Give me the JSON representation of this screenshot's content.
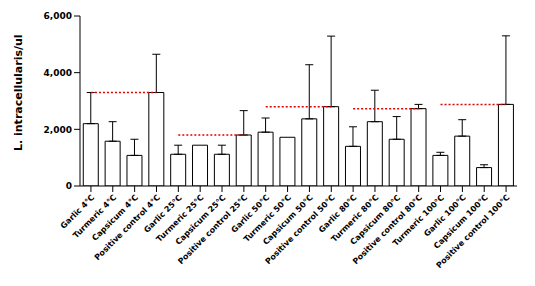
{
  "chart_data": {
    "type": "bar",
    "y_label": "L. intracellularis/ul",
    "categories": [
      "Garlic 4℃",
      "Turmeric 4℃",
      "Capsicum 4℃",
      "Positive control 4℃",
      "Garlic 25℃",
      "Turmeric 25℃",
      "Capsicum 25℃",
      "Positive control 25℃",
      "Garlic 50℃",
      "Turmeric 50℃",
      "Capsicum 50℃",
      "Positive control 50℃",
      "Garlic 80℃",
      "Turmeric 80℃",
      "Capsicum 80℃",
      "Positive control 80℃",
      "Turmeric 100℃",
      "Garlic 100℃",
      "Capsicum 100℃",
      "Positive control 100℃"
    ],
    "values": [
      2200,
      1580,
      1080,
      3300,
      1120,
      1440,
      1120,
      1800,
      1900,
      1720,
      2370,
      2800,
      1400,
      2270,
      1650,
      2730,
      1080,
      1760,
      650,
      2880
    ],
    "errors": [
      1100,
      690,
      570,
      1350,
      320,
      null,
      320,
      860,
      500,
      null,
      1910,
      2490,
      690,
      1110,
      800,
      150,
      110,
      580,
      100,
      2420
    ],
    "color": "#ffffff",
    "ylim": [
      0,
      6000
    ],
    "yticks": [
      0,
      {
        "value": 2000,
        "label": "2,000"
      },
      {
        "value": 4000,
        "label": "4,000"
      },
      {
        "value": 6000,
        "label": "6,000"
      }
    ],
    "grid": false
  }
}
